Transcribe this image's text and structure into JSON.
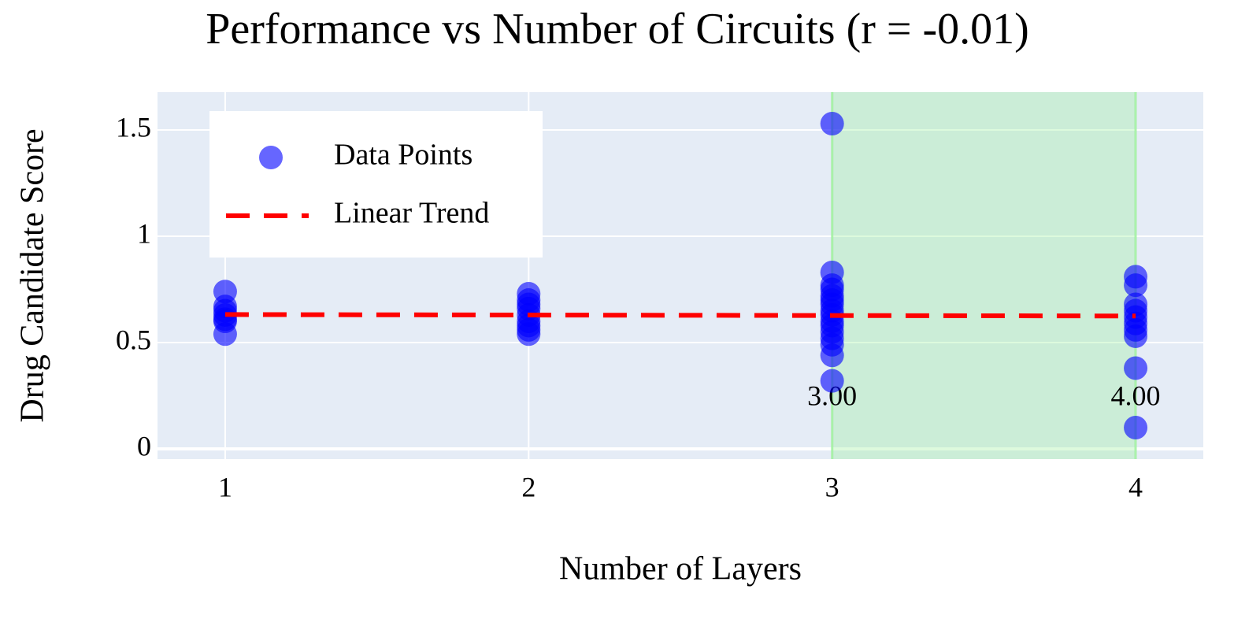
{
  "chart_data": {
    "type": "scatter",
    "title": "Performance vs Number of Circuits (r = -0.01)",
    "x_label": "Number of Layers",
    "y_label": "Drug Candidate Score",
    "series": [
      {
        "name": "Data Points",
        "color": "#0000ff",
        "mode": "markers",
        "x": [
          1,
          1,
          1,
          1,
          1,
          1,
          1,
          2,
          2,
          2,
          2,
          2,
          2,
          2,
          2,
          2,
          3,
          3,
          3,
          3,
          3,
          3,
          3,
          3,
          3,
          3,
          3,
          3,
          3,
          3,
          3,
          3,
          4,
          4,
          4,
          4,
          4,
          4,
          4,
          4,
          4,
          4
        ],
        "values": [
          0.74,
          0.67,
          0.65,
          0.63,
          0.61,
          0.6,
          0.54,
          0.73,
          0.7,
          0.68,
          0.66,
          0.63,
          0.6,
          0.58,
          0.56,
          0.54,
          1.53,
          0.83,
          0.77,
          0.75,
          0.72,
          0.7,
          0.68,
          0.65,
          0.63,
          0.6,
          0.58,
          0.55,
          0.52,
          0.49,
          0.44,
          0.32,
          0.81,
          0.77,
          0.68,
          0.65,
          0.62,
          0.59,
          0.56,
          0.53,
          0.38,
          0.1
        ]
      },
      {
        "name": "Linear Trend",
        "color": "#ff0000",
        "mode": "dashed-line",
        "x": [
          1,
          4
        ],
        "values": [
          0.632,
          0.625
        ]
      }
    ],
    "highlight": {
      "x": [
        3,
        4
      ],
      "color": "#90ee90"
    },
    "annotations": [
      {
        "text": "3.00",
        "x": 3
      },
      {
        "text": "4.00",
        "x": 4
      }
    ],
    "xlim": [
      0.777,
      4.223
    ],
    "xticks": [
      1,
      2,
      3,
      4
    ],
    "ylim": [
      -0.048,
      1.678
    ],
    "yticks": [
      0,
      0.5,
      1,
      1.5
    ],
    "grid": true,
    "legend_position": "upper-left"
  }
}
